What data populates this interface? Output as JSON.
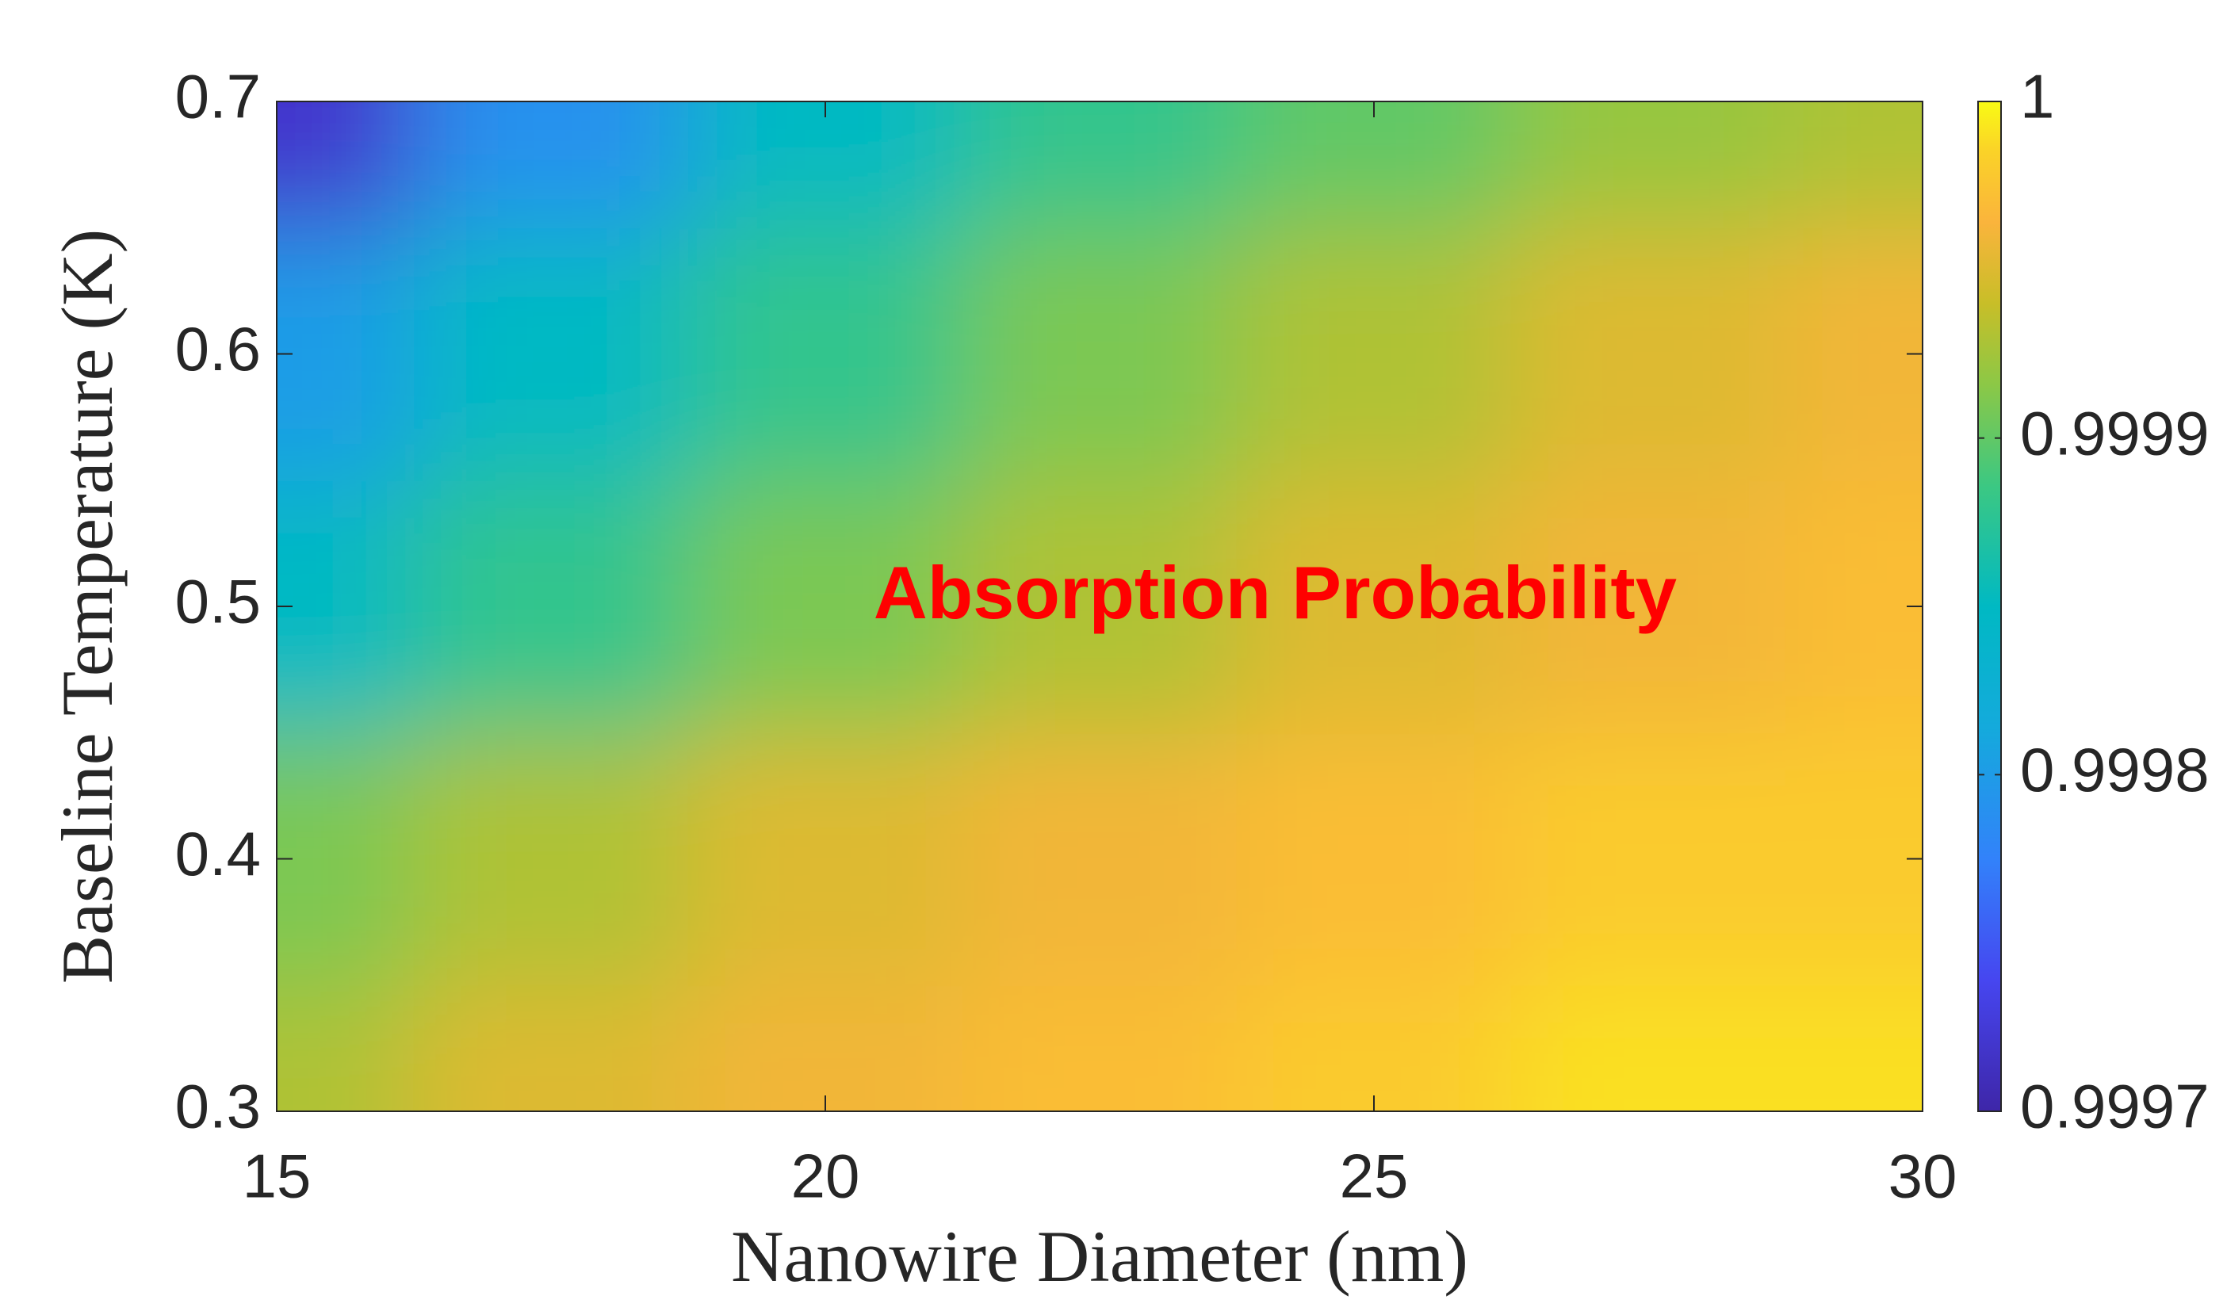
{
  "chart_data": {
    "type": "heatmap",
    "xlabel": "Nanowire Diameter (nm)",
    "ylabel": "Baseline Temperature (K)",
    "annotation": "Absorption Probability",
    "annotation_color": "#ff0000",
    "colormap": "parula",
    "x": [
      15,
      17.5,
      20,
      22.5,
      25,
      27.5,
      30
    ],
    "y": [
      0.3,
      0.4,
      0.5,
      0.6,
      0.7
    ],
    "values": [
      [
        0.99993,
        0.99995,
        0.99996,
        0.99997,
        0.99998,
        0.99999,
        0.99999
      ],
      [
        0.99991,
        0.99993,
        0.99995,
        0.99996,
        0.99997,
        0.99998,
        0.99998
      ],
      [
        0.99985,
        0.99988,
        0.99991,
        0.99993,
        0.99995,
        0.99996,
        0.99997
      ],
      [
        0.9998,
        0.99985,
        0.99988,
        0.99991,
        0.99993,
        0.99995,
        0.99996
      ],
      [
        0.99972,
        0.99979,
        0.99985,
        0.99988,
        0.9999,
        0.99992,
        0.99993
      ]
    ],
    "xlim": [
      15,
      30
    ],
    "xticks": [
      15,
      20,
      25,
      30
    ],
    "ylim": [
      0.3,
      0.7
    ],
    "yticks": [
      0.3,
      0.4,
      0.5,
      0.6,
      0.7
    ],
    "clim": [
      0.9997,
      1
    ],
    "cticks": [
      0.9997,
      0.9998,
      0.9999,
      1
    ]
  }
}
